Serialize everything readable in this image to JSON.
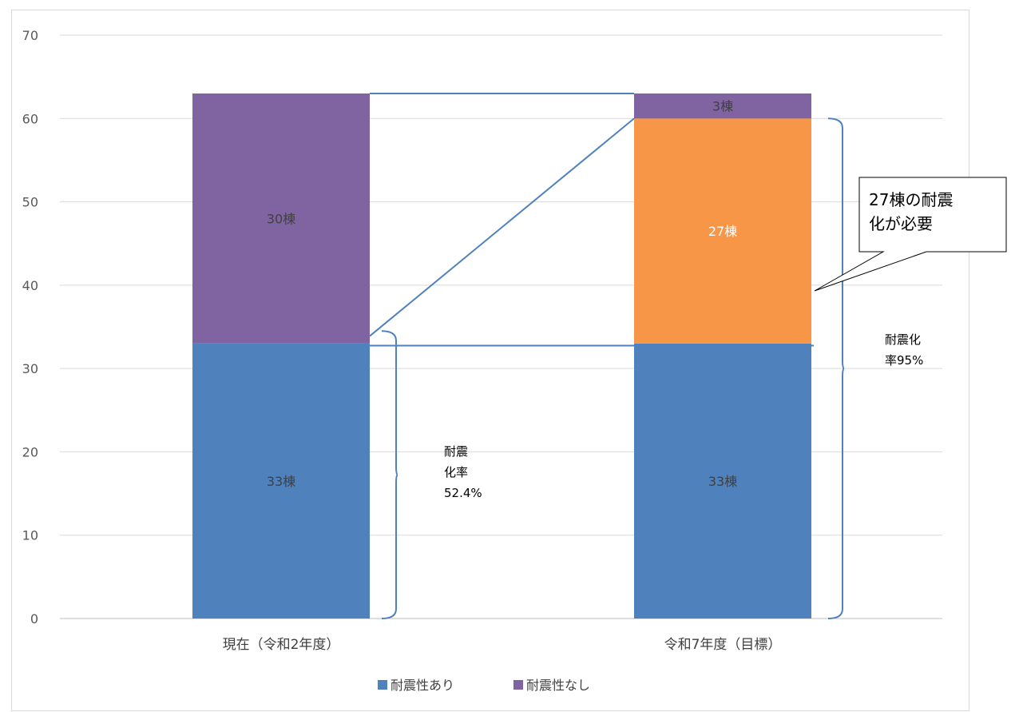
{
  "chart_data": {
    "type": "bar",
    "stacked": true,
    "categories": [
      "現在（令和2年度）",
      "令和7年度（目標）"
    ],
    "series": [
      {
        "name": "耐震性あり",
        "color": "#4f81bd",
        "values": [
          33,
          33
        ],
        "labels": [
          "33棟",
          "33棟"
        ]
      },
      {
        "name": "",
        "color": "#f79646",
        "values": [
          0,
          27
        ],
        "labels": [
          "",
          "27棟"
        ]
      },
      {
        "name": "耐震性なし",
        "color": "#8064a2",
        "values": [
          30,
          3
        ],
        "labels": [
          "30棟",
          "3棟"
        ]
      }
    ],
    "ylim": [
      0,
      70
    ],
    "yticks": [
      0,
      10,
      20,
      30,
      40,
      50,
      60,
      70
    ],
    "grid": true,
    "legend": "bottom",
    "annotations": {
      "left_bracket": [
        "耐震",
        "化率",
        "52.4%"
      ],
      "right_bracket": [
        "耐震化",
        "率95%"
      ],
      "callout": [
        "27棟の耐震",
        "化が必要"
      ]
    }
  }
}
